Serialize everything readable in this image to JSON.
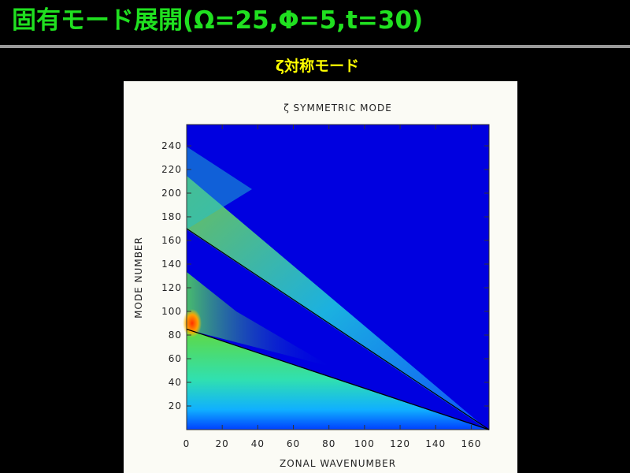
{
  "header": {
    "title": "固有モード展開(Ω=25,Φ=5,t=30)",
    "subtitle": "ζ対称モード"
  },
  "chart_data": {
    "type": "heatmap",
    "title": "ζ SYMMETRIC MODE",
    "x_label": "ZONAL WAVENUMBER",
    "y_label": "MODE NUMBER",
    "xlim": [
      0,
      170
    ],
    "ylim": [
      0,
      258
    ],
    "xticks": [
      0,
      20,
      40,
      60,
      80,
      100,
      120,
      140,
      160
    ],
    "yticks": [
      20,
      40,
      60,
      80,
      100,
      120,
      140,
      160,
      180,
      200,
      220,
      240
    ],
    "series": [
      {
        "color": "#000000",
        "x": [
          0,
          170
        ],
        "values": [
          170,
          0
        ]
      },
      {
        "color": "#000000",
        "x": [
          0,
          170
        ],
        "values": [
          85,
          0
        ]
      }
    ]
  }
}
